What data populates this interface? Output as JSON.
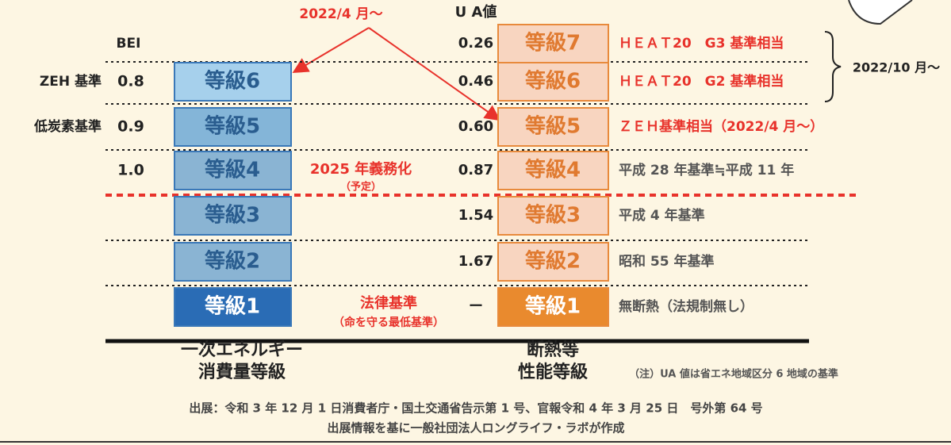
{
  "top_note": "2022/4 月〜",
  "ua_header": "U A値",
  "bei_header": "BEI",
  "grades": [
    {
      "level": "等級7",
      "ua": "0.26",
      "note": "ＨＥＡＴ20　G3 基準相当"
    },
    {
      "energy": "等級6",
      "bei_label": "ZEH 基準",
      "bei": "0.8",
      "level": "等級6",
      "ua": "0.46",
      "note": "ＨＥＡＴ20　G2 基準相当"
    },
    {
      "energy": "等級5",
      "bei_label": "低炭素基準",
      "bei": "0.9",
      "level": "等級5",
      "ua": "0.60",
      "note": "ＺＥＨ基準相当（2022/4 月〜）"
    },
    {
      "energy": "等級4",
      "bei": "1.0",
      "level": "等級4",
      "ua": "0.87",
      "note": "平成 28 年基準≒平成 11 年"
    },
    {
      "energy": "等級3",
      "level": "等級3",
      "ua": "1.54",
      "note": "平成 4 年基準"
    },
    {
      "energy": "等級2",
      "level": "等級2",
      "ua": "1.67",
      "note": "昭和 55 年基準"
    },
    {
      "energy": "等級1",
      "level": "等級1",
      "ua": "ー",
      "note": "無断熱（法規制無し）"
    }
  ],
  "mandate": {
    "title": "2025 年義務化",
    "sub": "（予定）"
  },
  "legal": {
    "title": "法律基準",
    "sub": "（命を守る最低基準）"
  },
  "brace_note": "2022/10 月〜",
  "captions": {
    "energy": [
      "一次エネルギー",
      "消費量等級"
    ],
    "insulation": [
      "断熱等",
      "性能等級"
    ],
    "note": "（注）UA 値は省エネ地域区分 6 地域の基準"
  },
  "footer": [
    "出展：令和 3 年 12 月 1 日消費者庁・国土交通省告示第 1 号、官報令和 4 年 3 月 25 日　号外第 64 号",
    "出展情報を基に一般社団法人ロングライフ・ラボが作成"
  ]
}
